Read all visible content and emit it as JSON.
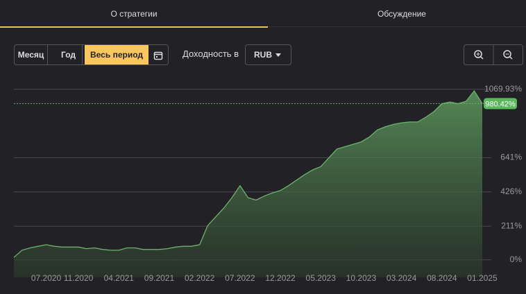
{
  "tabs": [
    "О стратегии",
    "Обсуждение"
  ],
  "periods": [
    "Месяц",
    "Год",
    "Весь период"
  ],
  "active_period": 2,
  "currency_label": "Доходность в",
  "currency": "RUB",
  "chart_data": {
    "type": "area",
    "x": [
      "03.2020",
      "04.2020",
      "05.2020",
      "06.2020",
      "07.2020",
      "08.2020",
      "09.2020",
      "10.2020",
      "11.2020",
      "12.2020",
      "01.2021",
      "02.2021",
      "03.2021",
      "04.2021",
      "05.2021",
      "06.2021",
      "07.2021",
      "08.2021",
      "09.2021",
      "10.2021",
      "11.2021",
      "12.2021",
      "01.2022",
      "02.2022",
      "03.2022",
      "04.2022",
      "05.2022",
      "06.2022",
      "07.2022",
      "08.2022",
      "09.2022",
      "10.2022",
      "11.2022",
      "12.2022",
      "01.2023",
      "02.2023",
      "03.2023",
      "04.2023",
      "05.2023",
      "06.2023",
      "07.2023",
      "08.2023",
      "09.2023",
      "10.2023",
      "11.2023",
      "12.2023",
      "01.2024",
      "02.2024",
      "03.2024",
      "04.2024",
      "05.2024",
      "06.2024",
      "07.2024",
      "08.2024",
      "09.2024",
      "10.2024",
      "11.2024",
      "12.2024",
      "01.2025"
    ],
    "values": [
      15,
      60,
      75,
      85,
      95,
      85,
      80,
      80,
      80,
      70,
      75,
      65,
      60,
      60,
      75,
      75,
      65,
      65,
      65,
      70,
      80,
      85,
      85,
      95,
      215,
      270,
      325,
      390,
      465,
      390,
      375,
      400,
      420,
      435,
      465,
      500,
      535,
      565,
      585,
      640,
      695,
      710,
      725,
      740,
      770,
      815,
      835,
      850,
      860,
      865,
      865,
      895,
      930,
      980,
      990,
      980,
      995,
      1060,
      980.42
    ],
    "color": "#6fb36f",
    "ylim": [
      -110,
      1130
    ],
    "yticks": [
      {
        "value": 0,
        "label": "0%"
      },
      {
        "value": 211,
        "label": "211%"
      },
      {
        "value": 426,
        "label": "426%"
      },
      {
        "value": 641,
        "label": "641%"
      },
      {
        "value": 1069.93,
        "label": "1069.93%"
      }
    ],
    "xticks": [
      "07.2020",
      "11.2020",
      "04.2021",
      "09.2021",
      "02.2022",
      "07.2022",
      "12.2022",
      "05.2023",
      "10.2023",
      "03.2024",
      "08.2024",
      "01.2025"
    ],
    "current": {
      "value": 980.42,
      "label": "980.42%"
    },
    "grid": true
  }
}
